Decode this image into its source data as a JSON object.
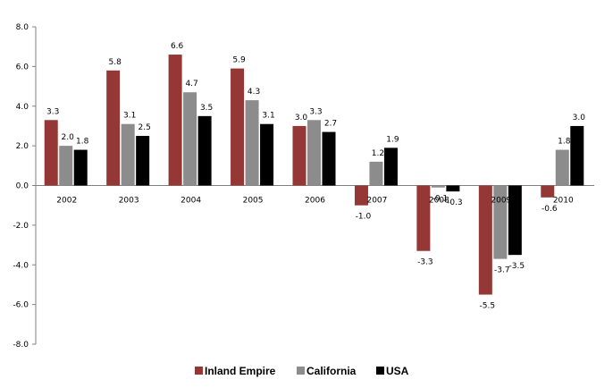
{
  "chart_data": {
    "type": "bar",
    "categories": [
      "2002",
      "2003",
      "2004",
      "2005",
      "2006",
      "2007",
      "2008",
      "2009",
      "2010"
    ],
    "series": [
      {
        "name": "Inland Empire",
        "color": "#953735",
        "values": [
          3.3,
          5.8,
          6.6,
          5.9,
          3.0,
          -1.0,
          -3.3,
          -5.5,
          -0.6
        ]
      },
      {
        "name": "California",
        "color": "#8c8c8c",
        "values": [
          2.0,
          3.1,
          4.7,
          4.3,
          3.3,
          1.2,
          -0.1,
          -3.7,
          1.8
        ]
      },
      {
        "name": "USA",
        "color": "#000000",
        "values": [
          1.8,
          2.5,
          3.5,
          3.1,
          2.7,
          1.9,
          -0.3,
          -3.5,
          3.0
        ]
      }
    ],
    "ylim": [
      -8.0,
      8.0
    ],
    "yticks": [
      "8.0",
      "6.0",
      "4.0",
      "2.0",
      "0.0",
      "-2.0",
      "-4.0",
      "-6.0",
      "-8.0"
    ],
    "grid": false,
    "legend_position": "bottom",
    "title": "",
    "xlabel": "",
    "ylabel": ""
  }
}
